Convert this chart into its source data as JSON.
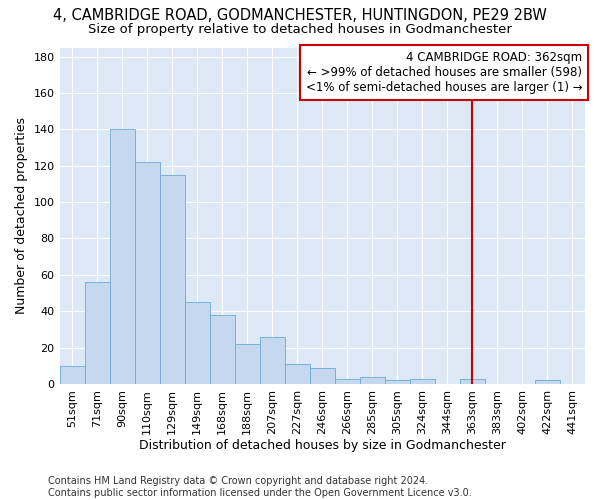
{
  "title": "4, CAMBRIDGE ROAD, GODMANCHESTER, HUNTINGDON, PE29 2BW",
  "subtitle": "Size of property relative to detached houses in Godmanchester",
  "xlabel": "Distribution of detached houses by size in Godmanchester",
  "ylabel": "Number of detached properties",
  "bar_color": "#c5d8ef",
  "bar_edge_color": "#6aaad4",
  "background_color": "#dce8f5",
  "fig_background": "#ffffff",
  "grid_color": "#ffffff",
  "categories": [
    "51sqm",
    "71sqm",
    "90sqm",
    "110sqm",
    "129sqm",
    "149sqm",
    "168sqm",
    "188sqm",
    "207sqm",
    "227sqm",
    "246sqm",
    "266sqm",
    "285sqm",
    "305sqm",
    "324sqm",
    "344sqm",
    "363sqm",
    "383sqm",
    "402sqm",
    "422sqm",
    "441sqm"
  ],
  "values": [
    10,
    56,
    140,
    122,
    115,
    45,
    38,
    22,
    26,
    11,
    9,
    3,
    4,
    2,
    3,
    0,
    3,
    0,
    0,
    2,
    0
  ],
  "vline_x": 16,
  "vline_color": "#cc0000",
  "annotation_text": "4 CAMBRIDGE ROAD: 362sqm\n← >99% of detached houses are smaller (598)\n<1% of semi-detached houses are larger (1) →",
  "annotation_box_color": "#cc0000",
  "annotation_bg": "#ffffff",
  "ylim": [
    0,
    185
  ],
  "yticks": [
    0,
    20,
    40,
    60,
    80,
    100,
    120,
    140,
    160,
    180
  ],
  "footer": "Contains HM Land Registry data © Crown copyright and database right 2024.\nContains public sector information licensed under the Open Government Licence v3.0.",
  "title_fontsize": 10.5,
  "subtitle_fontsize": 9.5,
  "axis_label_fontsize": 9,
  "tick_fontsize": 8,
  "footer_fontsize": 7,
  "annotation_fontsize": 8.5
}
